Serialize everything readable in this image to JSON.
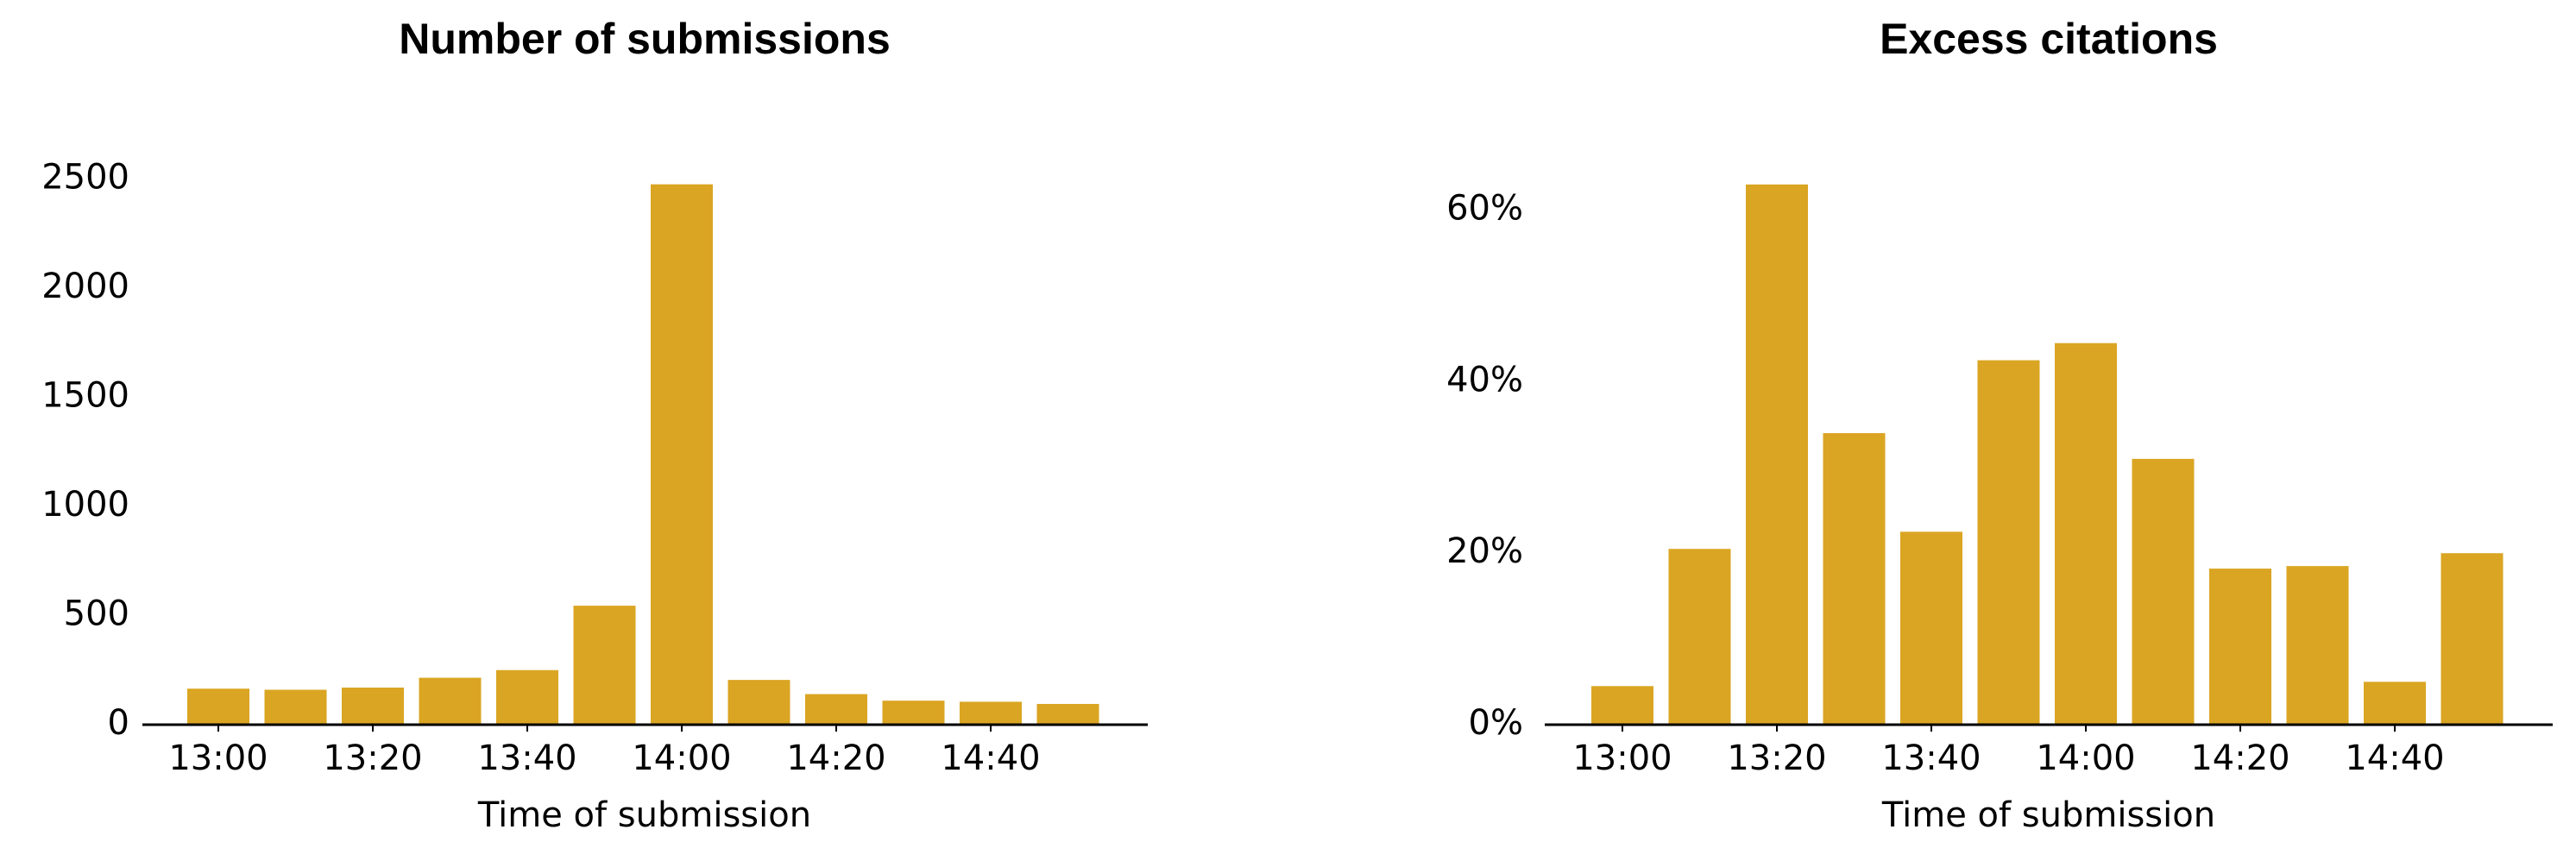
{
  "colors": {
    "bar": "#DAA522",
    "axis": "#000000",
    "background": "#ffffff"
  },
  "chart_data": [
    {
      "type": "bar",
      "title": "Number of submissions",
      "xlabel": "Time of submission",
      "ylabel": "",
      "categories": [
        "13:00",
        "13:10",
        "13:20",
        "13:30",
        "13:40",
        "13:50",
        "14:00",
        "14:10",
        "14:20",
        "14:30",
        "14:40",
        "14:50"
      ],
      "values": [
        165,
        160,
        170,
        215,
        250,
        545,
        2475,
        205,
        140,
        110,
        105,
        95
      ],
      "ylim": [
        0,
        2600
      ],
      "yticks": [
        0,
        500,
        1000,
        1500,
        2000,
        2500
      ],
      "ytick_labels": [
        "0",
        "500",
        "1000",
        "1500",
        "2000",
        "2500"
      ],
      "xtick_labels": [
        "13:00",
        "13:20",
        "13:40",
        "14:00",
        "14:20",
        "14:40"
      ],
      "grid": false,
      "legend": "none"
    },
    {
      "type": "bar",
      "title": "Excess citations",
      "xlabel": "Time of submission",
      "ylabel": "",
      "categories": [
        "13:00",
        "13:10",
        "13:20",
        "13:30",
        "13:40",
        "13:50",
        "14:00",
        "14:10",
        "14:20",
        "14:30",
        "14:40",
        "14:50"
      ],
      "values": [
        4.5,
        20.5,
        63,
        34,
        22.5,
        42.5,
        44.5,
        31,
        18.2,
        18.5,
        5,
        20
      ],
      "ylim": [
        0,
        66
      ],
      "yticks": [
        0,
        20,
        40,
        60
      ],
      "ytick_labels": [
        "0%",
        "20%",
        "40%",
        "60%"
      ],
      "xtick_labels": [
        "13:00",
        "13:20",
        "13:40",
        "14:00",
        "14:20",
        "14:40"
      ],
      "grid": false,
      "legend": "none"
    }
  ]
}
